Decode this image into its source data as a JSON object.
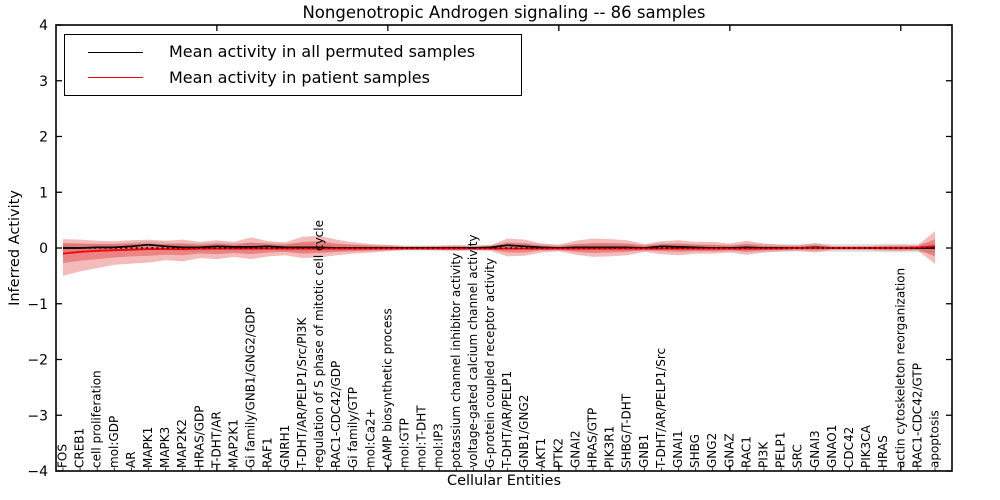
{
  "chart_data": {
    "type": "line",
    "title": "Nongenotropic Androgen signaling -- 86 samples",
    "xlabel": "Cellular Entities",
    "ylabel": "Inferred Activity",
    "ylim": [
      -4,
      4
    ],
    "yticks": [
      4,
      3,
      2,
      1,
      0,
      -1,
      -2,
      -3,
      -4
    ],
    "ytick_labels": [
      "4",
      "3",
      "2",
      "1",
      "0",
      "−1",
      "−2",
      "−3",
      "−4"
    ],
    "xticks_major": [
      10,
      20,
      30,
      40,
      50
    ],
    "grid": false,
    "legend_position": "upper left",
    "zero_line_style": "dotted",
    "categories": [
      "FOS",
      "CREB1",
      "cell proliferation",
      "mol:GDP",
      "AR",
      "MAPK1",
      "MAPK3",
      "MAP2K2",
      "HRAS/GDP",
      "T-DHT/AR",
      "MAP2K1",
      "Gi family/GNB1/GNG2/GDP",
      "RAF1",
      "GNRH1",
      "T-DHT/AR/PELP1/Src/PI3K",
      "regulation of S phase of mitotic cell cycle",
      "RAC1-CDC42/GDP",
      "Gi family/GTP",
      "mol:Ca2+",
      "cAMP biosynthetic process",
      "mol:GTP",
      "mol:T-DHT",
      "mol:IP3",
      "potassium channel inhibitor activity",
      "voltage-gated calcium channel activity",
      "G-protein coupled receptor activity",
      "T-DHT/AR/PELP1",
      "GNB1/GNG2",
      "AKT1",
      "PTK2",
      "GNAI2",
      "HRAS/GTP",
      "PIK3R1",
      "SHBG/T-DHT",
      "GNB1",
      "T-DHT/AR/PELP1/Src",
      "GNAI1",
      "SHBG",
      "GNG2",
      "GNAZ",
      "RAC1",
      "PI3K",
      "PELP1",
      "SRC",
      "GNAI3",
      "GNAO1",
      "CDC42",
      "PIK3CA",
      "HRAS",
      "actin cytoskeleton reorganization",
      "RAC1-CDC42/GTP",
      "apoptosis"
    ],
    "series": [
      {
        "name": "Mean activity in all permuted samples",
        "color": "#000000",
        "values": [
          0,
          0,
          0.01,
          0.01,
          0.03,
          0.06,
          0.03,
          0.01,
          0.01,
          0.03,
          0.02,
          0.02,
          0.03,
          0.01,
          0.01,
          0.01,
          0,
          0,
          0,
          0,
          0,
          0,
          0,
          0,
          0,
          0.01,
          0.05,
          0.03,
          0.01,
          0,
          0.01,
          0.01,
          0.01,
          0.01,
          0,
          0.03,
          0.02,
          0.01,
          0,
          0,
          0.01,
          0,
          0,
          0,
          0.01,
          0,
          0,
          0,
          0,
          0,
          0,
          0
        ]
      },
      {
        "name": "Mean activity in patient samples",
        "color": "#ff0000",
        "values": [
          -0.1,
          -0.07,
          -0.05,
          -0.04,
          -0.03,
          -0.02,
          -0.02,
          -0.02,
          -0.01,
          -0.01,
          -0.01,
          -0.01,
          -0.01,
          -0.01,
          -0.01,
          -0.01,
          -0.01,
          -0.01,
          -0.01,
          -0.01,
          -0.01,
          -0.01,
          -0.01,
          -0.01,
          -0.01,
          -0.01,
          -0.01,
          -0.01,
          -0.01,
          -0.01,
          -0.01,
          -0.01,
          -0.01,
          -0.01,
          -0.01,
          -0.01,
          -0.01,
          -0.01,
          -0.01,
          -0.01,
          -0.01,
          -0.01,
          -0.01,
          0,
          0,
          0,
          0,
          0,
          0,
          0,
          0.01,
          0.03
        ]
      }
    ],
    "bands": {
      "patient_outer": {
        "hi": [
          0.16,
          0.15,
          0.13,
          0.12,
          0.14,
          0.15,
          0.13,
          0.15,
          0.11,
          0.14,
          0.11,
          0.19,
          0.12,
          0.1,
          0.2,
          0.22,
          0.15,
          0.1,
          0.07,
          0.06,
          0.03,
          0.03,
          0.04,
          0.05,
          0.04,
          0.05,
          0.17,
          0.15,
          0.08,
          0.06,
          0.13,
          0.17,
          0.16,
          0.14,
          0.07,
          0.12,
          0.14,
          0.11,
          0.11,
          0.08,
          0.13,
          0.08,
          0.06,
          0.05,
          0.09,
          0.04,
          0.04,
          0.04,
          0.05,
          0.06,
          0.05,
          0.3
        ],
        "lo": [
          -0.5,
          -0.42,
          -0.36,
          -0.3,
          -0.28,
          -0.26,
          -0.22,
          -0.24,
          -0.18,
          -0.2,
          -0.16,
          -0.2,
          -0.15,
          -0.13,
          -0.18,
          -0.17,
          -0.13,
          -0.1,
          -0.08,
          -0.06,
          -0.03,
          -0.03,
          -0.04,
          -0.05,
          -0.04,
          -0.05,
          -0.15,
          -0.14,
          -0.08,
          -0.06,
          -0.12,
          -0.16,
          -0.15,
          -0.13,
          -0.07,
          -0.11,
          -0.13,
          -0.1,
          -0.1,
          -0.08,
          -0.12,
          -0.08,
          -0.06,
          -0.05,
          -0.08,
          -0.04,
          -0.04,
          -0.04,
          -0.05,
          -0.06,
          -0.05,
          -0.28
        ]
      },
      "patient_inner": {
        "hi": [
          0.09,
          0.08,
          0.07,
          0.07,
          0.08,
          0.08,
          0.07,
          0.08,
          0.06,
          0.08,
          0.06,
          0.1,
          0.07,
          0.06,
          0.11,
          0.12,
          0.08,
          0.06,
          0.04,
          0.03,
          0.02,
          0.02,
          0.02,
          0.03,
          0.02,
          0.03,
          0.09,
          0.08,
          0.04,
          0.03,
          0.07,
          0.09,
          0.09,
          0.08,
          0.04,
          0.07,
          0.08,
          0.06,
          0.06,
          0.04,
          0.07,
          0.04,
          0.03,
          0.03,
          0.05,
          0.02,
          0.02,
          0.02,
          0.03,
          0.03,
          0.03,
          0.16
        ],
        "lo": [
          -0.27,
          -0.23,
          -0.2,
          -0.17,
          -0.15,
          -0.14,
          -0.12,
          -0.13,
          -0.1,
          -0.11,
          -0.09,
          -0.11,
          -0.08,
          -0.07,
          -0.1,
          -0.09,
          -0.07,
          -0.06,
          -0.04,
          -0.03,
          -0.02,
          -0.02,
          -0.02,
          -0.03,
          -0.02,
          -0.03,
          -0.08,
          -0.08,
          -0.04,
          -0.03,
          -0.07,
          -0.09,
          -0.08,
          -0.07,
          -0.04,
          -0.06,
          -0.07,
          -0.06,
          -0.06,
          -0.04,
          -0.07,
          -0.04,
          -0.03,
          -0.03,
          -0.04,
          -0.02,
          -0.02,
          -0.02,
          -0.03,
          -0.03,
          -0.03,
          -0.15
        ]
      },
      "permuted_std_half_width": [
        0.08,
        0.08,
        0.07,
        0.07,
        0.07,
        0.07,
        0.07,
        0.07,
        0.07,
        0.07,
        0.07,
        0.07,
        0.07,
        0.07,
        0.07,
        0.07,
        0.06,
        0.06,
        0.06,
        0.05,
        0.05,
        0.05,
        0.05,
        0.05,
        0.05,
        0.05,
        0.06,
        0.06,
        0.06,
        0.06,
        0.06,
        0.06,
        0.06,
        0.06,
        0.06,
        0.06,
        0.06,
        0.06,
        0.06,
        0.06,
        0.07,
        0.07,
        0.07,
        0.07,
        0.07,
        0.07,
        0.07,
        0.07,
        0.08,
        0.08,
        0.08,
        0.08
      ]
    },
    "colors": {
      "patient_line": "#ff0000",
      "permuted_line": "#000000",
      "band_red_outer": "rgba(222,45,45,0.32)",
      "band_red_inner": "rgba(222,45,45,0.38)",
      "band_gray": "rgba(0,0,0,0.10)",
      "zero_line": "#000000",
      "axis": "#000000"
    }
  }
}
